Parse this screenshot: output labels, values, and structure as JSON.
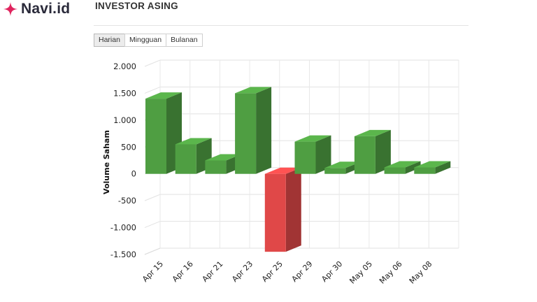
{
  "brand": {
    "name": "Navi.id",
    "icon": "sparkle-icon",
    "color": "#e0245e"
  },
  "section": {
    "title": "INVESTOR ASING"
  },
  "tabs": [
    {
      "label": "Harian",
      "active": true
    },
    {
      "label": "Mingguan",
      "active": false
    },
    {
      "label": "Bulanan",
      "active": false
    }
  ],
  "chart_data": {
    "type": "bar",
    "title": "",
    "xlabel": "",
    "ylabel": "Volume Saham",
    "categories": [
      "Apr 15",
      "Apr 16",
      "Apr 21",
      "Apr 23",
      "Apr 25",
      "Apr 29",
      "Apr 30",
      "May 05",
      "May 06",
      "May 08"
    ],
    "values": [
      1400,
      550,
      250,
      1500,
      -1450,
      600,
      110,
      700,
      120,
      120
    ],
    "ylim": [
      -1500,
      2000
    ],
    "yticks": [
      2000,
      1500,
      1000,
      500,
      0,
      -500,
      -1000,
      -1500
    ],
    "ytick_labels": [
      "2.000",
      "1.500",
      "1.000",
      "500",
      "0",
      "-500",
      "-1.000",
      "-1.500"
    ],
    "grid": true,
    "style": "3d",
    "colors": {
      "positive": "#4f9e42",
      "negative": "#e04848"
    }
  }
}
